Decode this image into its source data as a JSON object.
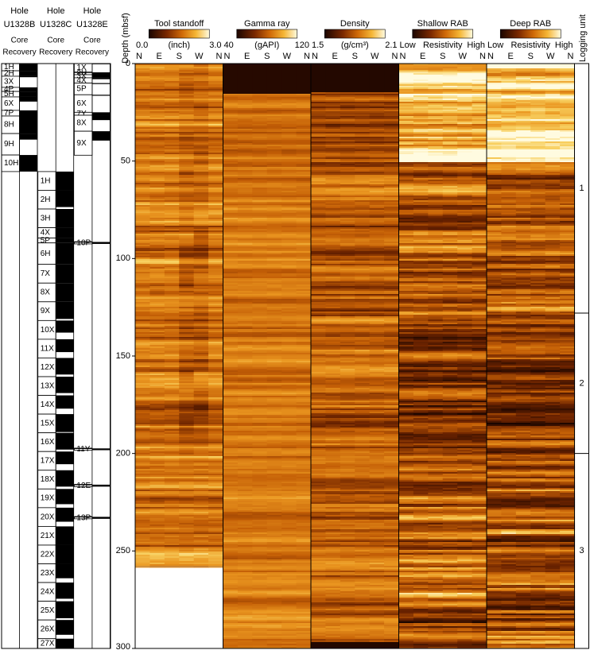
{
  "depth_axis": {
    "label": "Depth (mbsf)",
    "ylim": [
      0,
      300
    ],
    "yticks": [
      0,
      50,
      100,
      150,
      200,
      250,
      300
    ]
  },
  "holes": [
    {
      "hole_label": "Hole",
      "hole_id": "U1328B",
      "core_label": "Core",
      "recovery_label": "Recovery",
      "cores": [
        {
          "label": "1H",
          "top": 0,
          "bottom": 3.7,
          "rec": 3.7
        },
        {
          "label": "2H",
          "top": 3.7,
          "bottom": 6.5,
          "rec": 6.5
        },
        {
          "label": "3X",
          "top": 6.5,
          "bottom": 12.2,
          "rec": 7
        },
        {
          "label": "4P",
          "top": 12.2,
          "bottom": 14.3,
          "rec": 14.3
        },
        {
          "label": "5H",
          "top": 14.3,
          "bottom": 17.1,
          "rec": 17.1
        },
        {
          "label": "6X",
          "top": 17.1,
          "bottom": 24,
          "rec": 19.5
        },
        {
          "label": "7P",
          "top": 24,
          "bottom": 26.9,
          "rec": 26.9
        },
        {
          "label": "8H",
          "top": 26.9,
          "bottom": 35.9,
          "rec": 35.9
        },
        {
          "label": "9H",
          "top": 35.9,
          "bottom": 46.9,
          "rec": 39
        },
        {
          "label": "10H",
          "top": 46.9,
          "bottom": 55.4,
          "rec": 55.4
        }
      ]
    },
    {
      "hole_label": "Hole",
      "hole_id": "U1328C",
      "core_label": "Core",
      "recovery_label": "Recovery",
      "cores": [
        {
          "label": "1H",
          "top": 55.4,
          "bottom": 65,
          "rec": 65
        },
        {
          "label": "2H",
          "top": 65,
          "bottom": 74.6,
          "rec": 73.6
        },
        {
          "label": "3H",
          "top": 74.6,
          "bottom": 84.2,
          "rec": 84.2
        },
        {
          "label": "4X",
          "top": 84.2,
          "bottom": 89.5,
          "rec": 89.5
        },
        {
          "label": "5P",
          "top": 89.5,
          "bottom": 92,
          "rec": 92
        },
        {
          "label": "6H",
          "top": 92,
          "bottom": 103,
          "rec": 103
        },
        {
          "label": "7X",
          "top": 103,
          "bottom": 112.6,
          "rec": 112.6
        },
        {
          "label": "8X",
          "top": 112.6,
          "bottom": 122.2,
          "rec": 122.2
        },
        {
          "label": "9X",
          "top": 122.2,
          "bottom": 131.8,
          "rec": 131
        },
        {
          "label": "10X",
          "top": 131.8,
          "bottom": 141.4,
          "rec": 138
        },
        {
          "label": "11X",
          "top": 141.4,
          "bottom": 151,
          "rec": 148
        },
        {
          "label": "12X",
          "top": 151,
          "bottom": 160.6,
          "rec": 159.5
        },
        {
          "label": "13X",
          "top": 160.6,
          "bottom": 170.2,
          "rec": 169
        },
        {
          "label": "14X",
          "top": 170.2,
          "bottom": 179.8,
          "rec": 177
        },
        {
          "label": "15X",
          "top": 179.8,
          "bottom": 189.4,
          "rec": 189
        },
        {
          "label": "16X",
          "top": 189.4,
          "bottom": 199,
          "rec": 198
        },
        {
          "label": "17X",
          "top": 199,
          "bottom": 208.6,
          "rec": 205.5
        },
        {
          "label": "18X",
          "top": 208.6,
          "bottom": 218.2,
          "rec": 217
        },
        {
          "label": "19X",
          "top": 218.2,
          "bottom": 227.8,
          "rec": 226
        },
        {
          "label": "20X",
          "top": 227.8,
          "bottom": 237.4,
          "rec": 235
        },
        {
          "label": "21X",
          "top": 237.4,
          "bottom": 247,
          "rec": 247
        },
        {
          "label": "22X",
          "top": 247,
          "bottom": 256.6,
          "rec": 256.6
        },
        {
          "label": "23X",
          "top": 256.6,
          "bottom": 266.2,
          "rec": 264
        },
        {
          "label": "24X",
          "top": 266.2,
          "bottom": 275.8,
          "rec": 274.5
        },
        {
          "label": "25X",
          "top": 275.8,
          "bottom": 285.4,
          "rec": 284.5
        },
        {
          "label": "26X",
          "top": 285.4,
          "bottom": 295,
          "rec": 293
        },
        {
          "label": "27X",
          "top": 295,
          "bottom": 300,
          "rec": 300
        }
      ]
    },
    {
      "hole_label": "Hole",
      "hole_id": "U1328E",
      "core_label": "Core",
      "recovery_label": "Recovery",
      "cores": [
        {
          "label": "1X",
          "top": 0,
          "bottom": 4.5,
          "rec": 0.3
        },
        {
          "label": "2H",
          "top": 4.5,
          "bottom": 5.7,
          "rec": 5.7
        },
        {
          "label": "3X",
          "top": 5.7,
          "bottom": 7.3,
          "rec": 7.3
        },
        {
          "label": "4X",
          "top": 7.3,
          "bottom": 10,
          "rec": 8
        },
        {
          "label": "5P",
          "top": 10,
          "bottom": 16,
          "rec": 10.5
        },
        {
          "label": "6X",
          "top": 16,
          "bottom": 25,
          "rec": 16.5
        },
        {
          "label": "7Y",
          "top": 25,
          "bottom": 26.5,
          "rec": 26.5
        },
        {
          "label": "8X",
          "top": 26.5,
          "bottom": 34.7,
          "rec": 29
        },
        {
          "label": "9X",
          "top": 34.7,
          "bottom": 47,
          "rec": 39.5
        },
        {
          "label": "10P",
          "top": 91.5,
          "bottom": 92.5,
          "rec": 92.5
        },
        {
          "label": "11Y",
          "top": 197.4,
          "bottom": 198.3,
          "rec": 198.3
        },
        {
          "label": "12E",
          "top": 216,
          "bottom": 217,
          "rec": 217
        },
        {
          "label": "13P",
          "top": 232.5,
          "bottom": 233.5,
          "rec": 233.5
        }
      ]
    }
  ],
  "azimuth_labels": [
    "N",
    "E",
    "S",
    "W",
    "N"
  ],
  "tracks": [
    {
      "title": "Tool standoff",
      "scale": [
        "0.0",
        "3.0"
      ],
      "unit": "(inch)",
      "data_bottom": 258
    },
    {
      "title": "Gamma ray",
      "scale": [
        40,
        120
      ],
      "unit": "(gAPI)"
    },
    {
      "title": "Density",
      "scale": [
        "1.5",
        "2.1"
      ],
      "unit": "(g/cm³)"
    },
    {
      "title": "Shallow RAB",
      "scale": [
        "Low",
        "High"
      ],
      "unit": "Resistivity"
    },
    {
      "title": "Deep RAB",
      "scale": [
        "Low",
        "High"
      ],
      "unit": "Resistivity"
    }
  ],
  "logging_units": {
    "title": "Logging unit",
    "units": [
      {
        "label": "1",
        "top": 0,
        "bottom": 128
      },
      {
        "label": "2",
        "top": 128,
        "bottom": 200
      },
      {
        "label": "3",
        "top": 200,
        "bottom": 300
      }
    ]
  }
}
